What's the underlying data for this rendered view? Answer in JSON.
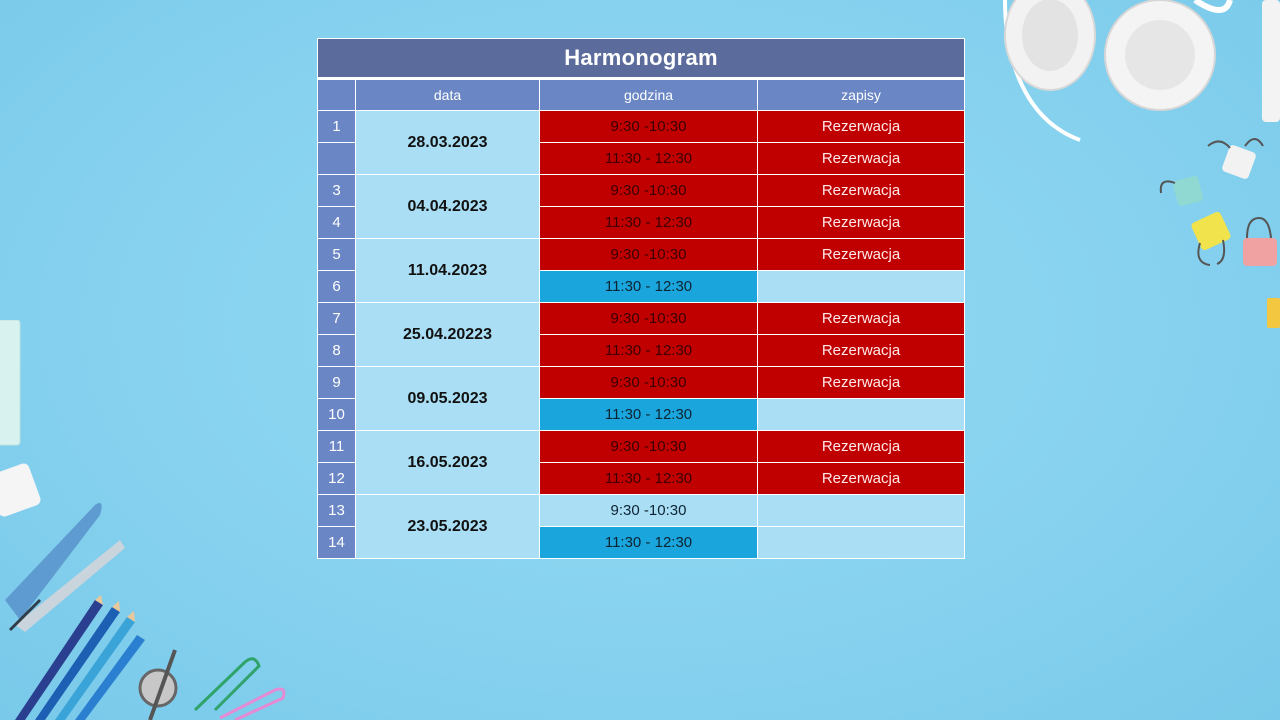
{
  "schedule": {
    "title": "Harmonogram",
    "columns": [
      "",
      "data",
      "godzina",
      "zapisy"
    ],
    "rows": [
      {
        "num": "1",
        "time": "9:30 -10:30",
        "time_state": "reserved",
        "zapis": "Rezerwacja"
      },
      {
        "num": "",
        "time": "11:30 - 12:30",
        "time_state": "reserved",
        "zapis": "Rezerwacja"
      },
      {
        "num": "3",
        "time": "9:30 -10:30",
        "time_state": "reserved",
        "zapis": "Rezerwacja"
      },
      {
        "num": "4",
        "time": "11:30 - 12:30",
        "time_state": "reserved",
        "zapis": "Rezerwacja"
      },
      {
        "num": "5",
        "time": "9:30 -10:30",
        "time_state": "reserved",
        "zapis": "Rezerwacja"
      },
      {
        "num": "6",
        "time": "11:30 - 12:30",
        "time_state": "blue",
        "zapis": ""
      },
      {
        "num": "7",
        "time": "9:30 -10:30",
        "time_state": "reserved",
        "zapis": "Rezerwacja"
      },
      {
        "num": "8",
        "time": "11:30 - 12:30",
        "time_state": "reserved",
        "zapis": "Rezerwacja"
      },
      {
        "num": "9",
        "time": "9:30 -10:30",
        "time_state": "reserved",
        "zapis": "Rezerwacja"
      },
      {
        "num": "10",
        "time": "11:30 - 12:30",
        "time_state": "blue",
        "zapis": ""
      },
      {
        "num": "11",
        "time": "9:30 -10:30",
        "time_state": "reserved",
        "zapis": "Rezerwacja"
      },
      {
        "num": "12",
        "time": "11:30 - 12:30",
        "time_state": "reserved",
        "zapis": "Rezerwacja"
      },
      {
        "num": "13",
        "time": "9:30 -10:30",
        "time_state": "light",
        "zapis": ""
      },
      {
        "num": "14",
        "time": "11:30 - 12:30",
        "time_state": "blue",
        "zapis": ""
      }
    ],
    "dates": [
      "28.03.2023",
      "04.04.2023",
      "11.04.2023",
      "25.04.20223",
      "09.05.2023",
      "16.05.2023",
      "23.05.2023"
    ]
  },
  "colors": {
    "background": "#89d4f0",
    "title_bar": "#5b6b9b",
    "header": "#6a86c4",
    "reserved": "#c00000",
    "available": "#1aa6dc",
    "light": "#a9def4"
  },
  "decorations": [
    "headphones-icon",
    "binder-clips-icon",
    "stapler-icon",
    "pencils-icon",
    "paperclips-icon",
    "eraser-icon",
    "notepad-icon"
  ]
}
